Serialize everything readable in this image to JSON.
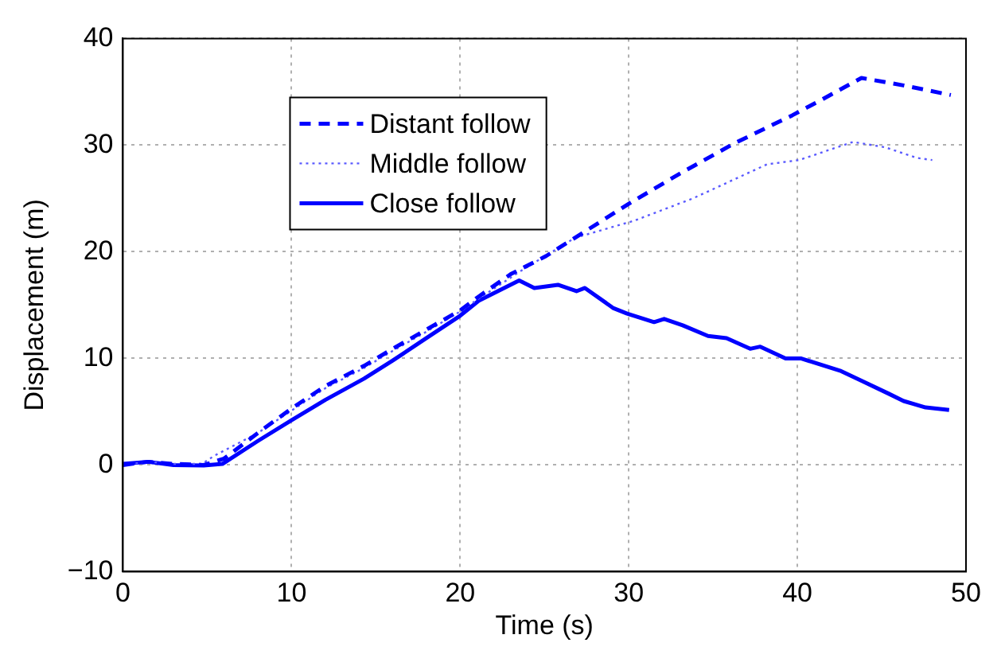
{
  "chart_data": {
    "type": "line",
    "xlabel": "Time (s)",
    "ylabel": "Displacement (m)",
    "xlim": [
      0,
      50
    ],
    "ylim": [
      -10,
      40
    ],
    "xticks": [
      0,
      10,
      20,
      30,
      40,
      50
    ],
    "yticks": [
      -10,
      0,
      10,
      20,
      30,
      40
    ],
    "grid": true,
    "legend": "top left",
    "marker": "none",
    "series": [
      {
        "name": "Distant follow",
        "color": "#0000ff",
        "line_style": "dashed",
        "x": [
          0,
          1.5,
          3,
          4.8,
          6,
          8,
          10,
          12,
          14.3,
          16,
          18,
          20,
          21.1,
          23,
          25.1,
          27.5,
          30,
          33,
          36.3,
          39.7,
          41.6,
          43.8,
          46.3,
          49.1
        ],
        "values": [
          0,
          0.3,
          0.1,
          0,
          0.6,
          3,
          5.3,
          7.4,
          9.3,
          10.9,
          12.7,
          14.5,
          15.8,
          17.9,
          19.6,
          22,
          24.5,
          27.3,
          30.2,
          32.8,
          34.4,
          36.3,
          35.6,
          34.7
        ]
      },
      {
        "name": "Middle follow",
        "color": "#5a5aff",
        "line_style": "dotted",
        "x": [
          0,
          1.5,
          3,
          4.7,
          5.4,
          8,
          10,
          12,
          14.3,
          16,
          18,
          20,
          21.1,
          23.6,
          26.8,
          30.3,
          33.8,
          38.2,
          40.1,
          43.3,
          45.2,
          47.1,
          48
        ],
        "values": [
          0,
          0.3,
          0.1,
          0.1,
          0.85,
          3,
          5.1,
          7.2,
          9.1,
          10.7,
          12.5,
          14.4,
          15.6,
          18.2,
          21.3,
          22.9,
          25,
          28.2,
          28.6,
          30.3,
          29.8,
          28.8,
          28.6
        ]
      },
      {
        "name": "Close follow",
        "color": "#0000ff",
        "line_style": "solid",
        "x": [
          0,
          1.5,
          3,
          4.8,
          5.9,
          8,
          10,
          12,
          14.3,
          16,
          18,
          20,
          21.1,
          23.5,
          24.4,
          25.8,
          26.9,
          27.4,
          29.1,
          29.9,
          31.5,
          32.1,
          33.2,
          34.7,
          35.8,
          37.2,
          37.8,
          39.3,
          40.2,
          42.6,
          43.8,
          45.4,
          46.3,
          47.6,
          49
        ],
        "values": [
          0.1,
          0.3,
          0,
          -0.05,
          0.1,
          2.25,
          4.2,
          6.1,
          8.1,
          9.8,
          11.9,
          14,
          15.4,
          17.3,
          16.6,
          16.9,
          16.3,
          16.6,
          14.7,
          14.2,
          13.4,
          13.7,
          13.1,
          12.1,
          11.9,
          10.9,
          11.1,
          10,
          10,
          8.8,
          7.9,
          6.7,
          6,
          5.4,
          5.16
        ]
      }
    ]
  }
}
